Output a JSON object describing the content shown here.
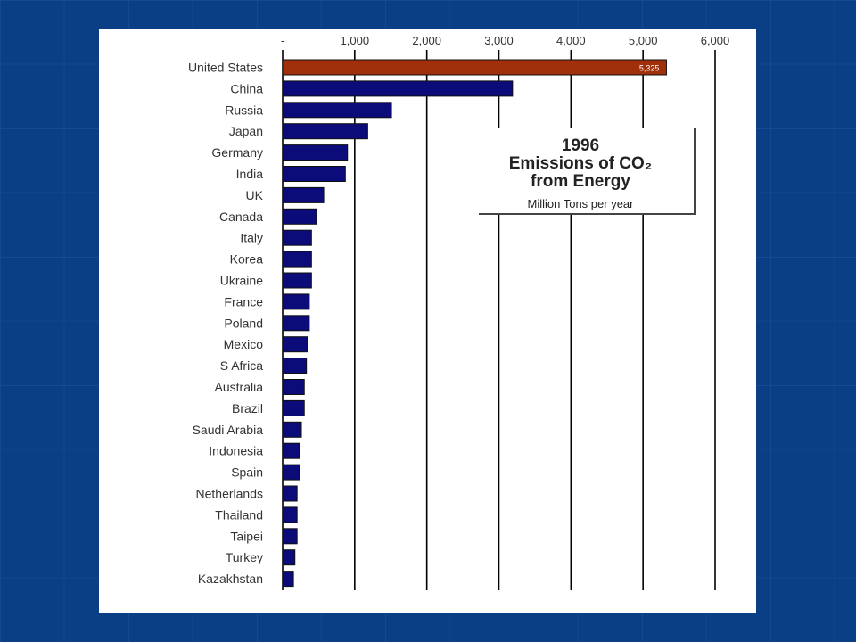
{
  "colors": {
    "slide_background": "#0a3f86",
    "panel_background": "#ffffff",
    "bar_default": "#0b0b7a",
    "bar_highlight": "#a0300a",
    "gridline": "#000000"
  },
  "chart_data": {
    "type": "bar",
    "orientation": "horizontal",
    "title_lines": [
      "1996",
      "Emissions of CO₂",
      "from Energy"
    ],
    "subtitle": "Million Tons per year",
    "xlim": [
      0,
      6000
    ],
    "x_ticks": [
      0,
      1000,
      2000,
      3000,
      4000,
      5000,
      6000
    ],
    "x_tick_labels": [
      "-",
      "1,000",
      "2,000",
      "3,000",
      "4,000",
      "5,000",
      "6,000"
    ],
    "grid": true,
    "title_box_placement": "upper-right",
    "categories": [
      "United States",
      "China",
      "Russia",
      "Japan",
      "Germany",
      "India",
      "UK",
      "Canada",
      "Italy",
      "Korea",
      "Ukraine",
      "France",
      "Poland",
      "Mexico",
      "S Africa",
      "Australia",
      "Brazil",
      "Saudi Arabia",
      "Indonesia",
      "Spain",
      "Netherlands",
      "Thailand",
      "Taipei",
      "Turkey",
      "Kazakhstan"
    ],
    "values": [
      5325,
      3190,
      1510,
      1180,
      900,
      870,
      570,
      470,
      400,
      400,
      400,
      370,
      370,
      340,
      330,
      300,
      300,
      260,
      230,
      230,
      200,
      200,
      200,
      170,
      150
    ],
    "data_labels": {
      "United States": "5,325"
    },
    "highlight_category": "United States"
  }
}
